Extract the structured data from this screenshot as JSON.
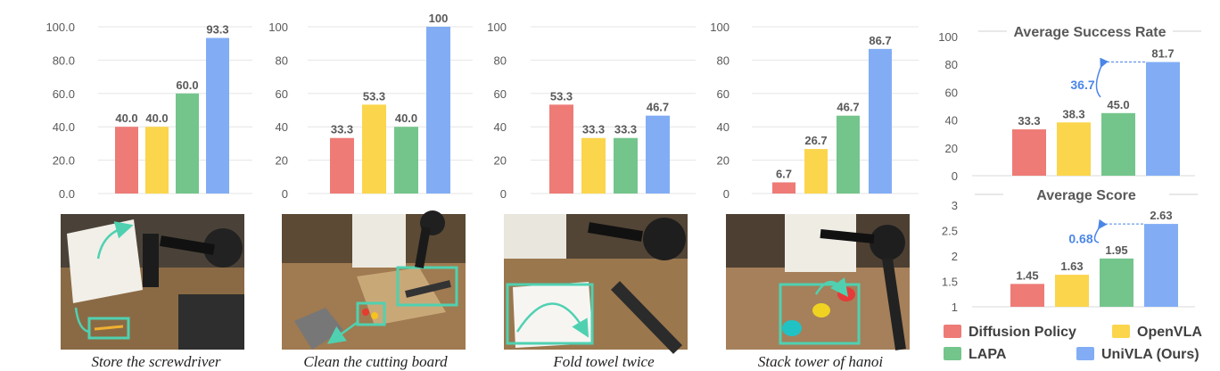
{
  "colors": {
    "Diffusion Policy": "#ee7b76",
    "OpenVLA": "#fbd54c",
    "LAPA": "#74c58c",
    "UniVLA (Ours)": "#82adf5"
  },
  "legend": [
    "Diffusion Policy",
    "OpenVLA",
    "LAPA",
    "UniVLA (Ours)"
  ],
  "chart_data": [
    {
      "type": "bar",
      "caption": "Store the screwdriver",
      "categories": [
        "Diffusion Policy",
        "OpenVLA",
        "LAPA",
        "UniVLA (Ours)"
      ],
      "values": [
        40.0,
        40.0,
        60.0,
        93.3
      ],
      "value_labels": [
        "40.0",
        "40.0",
        "60.0",
        "93.3"
      ],
      "ylim": [
        0,
        100
      ],
      "yticks": [
        "0.0",
        "20.0",
        "40.0",
        "60.0",
        "80.0",
        "100.0"
      ],
      "grid": true
    },
    {
      "type": "bar",
      "caption": "Clean the cutting board",
      "categories": [
        "Diffusion Policy",
        "OpenVLA",
        "LAPA",
        "UniVLA (Ours)"
      ],
      "values": [
        33.3,
        53.3,
        40.0,
        100
      ],
      "value_labels": [
        "33.3",
        "53.3",
        "40.0",
        "100"
      ],
      "ylim": [
        0,
        100
      ],
      "yticks": [
        "0",
        "20",
        "40",
        "60",
        "80",
        "100"
      ],
      "grid": true
    },
    {
      "type": "bar",
      "caption": "Fold towel twice",
      "categories": [
        "Diffusion Policy",
        "OpenVLA",
        "LAPA",
        "UniVLA (Ours)"
      ],
      "values": [
        53.3,
        33.3,
        33.3,
        46.7
      ],
      "value_labels": [
        "53.3",
        "33.3",
        "33.3",
        "46.7"
      ],
      "ylim": [
        0,
        100
      ],
      "yticks": [
        "0",
        "20",
        "40",
        "60",
        "80",
        "100"
      ],
      "grid": true
    },
    {
      "type": "bar",
      "caption": "Stack tower of hanoi",
      "categories": [
        "Diffusion Policy",
        "OpenVLA",
        "LAPA",
        "UniVLA (Ours)"
      ],
      "values": [
        6.7,
        26.7,
        46.7,
        86.7
      ],
      "value_labels": [
        "6.7",
        "26.7",
        "46.7",
        "86.7"
      ],
      "ylim": [
        0,
        100
      ],
      "yticks": [
        "0",
        "20",
        "40",
        "60",
        "80",
        "100"
      ],
      "grid": true
    },
    {
      "type": "bar",
      "title": "Average Success Rate",
      "categories": [
        "Diffusion Policy",
        "OpenVLA",
        "LAPA",
        "UniVLA (Ours)"
      ],
      "values": [
        33.3,
        38.3,
        45.0,
        81.7
      ],
      "value_labels": [
        "33.3",
        "38.3",
        "45.0",
        "81.7"
      ],
      "ylim": [
        0,
        100
      ],
      "yticks": [
        "0",
        "20",
        "40",
        "60",
        "80",
        "100"
      ],
      "annotation": "36.7",
      "grid": false
    },
    {
      "type": "bar",
      "title": "Average Score",
      "categories": [
        "Diffusion Policy",
        "OpenVLA",
        "LAPA",
        "UniVLA (Ours)"
      ],
      "values": [
        1.45,
        1.63,
        1.95,
        2.63
      ],
      "value_labels": [
        "1.45",
        "1.63",
        "1.95",
        "2.63"
      ],
      "ylim": [
        1,
        3
      ],
      "yticks": [
        "1",
        "1.5",
        "2",
        "2.5",
        "3"
      ],
      "annotation": "0.68",
      "grid": false
    }
  ]
}
